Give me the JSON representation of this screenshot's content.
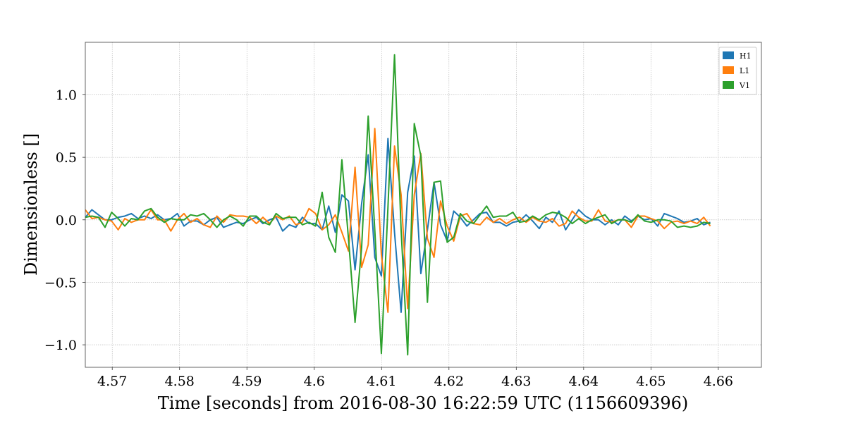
{
  "chart_data": {
    "type": "line",
    "xlabel": "Time [seconds] from 2016-08-30 16:22:59 UTC (1156609396)",
    "ylabel": "Dimensionless []",
    "xlim": [
      4.566,
      4.6664
    ],
    "ylim": [
      -1.18,
      1.42
    ],
    "grid": true,
    "legend_position": "top-right",
    "x_ticks": [
      4.57,
      4.58,
      4.59,
      4.6,
      4.61,
      4.62,
      4.63,
      4.64,
      4.65,
      4.66
    ],
    "x_tick_labels": [
      "4.57",
      "4.58",
      "4.59",
      "4.6",
      "4.61",
      "4.62",
      "4.63",
      "4.64",
      "4.65",
      "4.66"
    ],
    "y_ticks": [
      1.0,
      0.5,
      0.0,
      -0.5,
      -1.0
    ],
    "y_tick_labels": [
      "1.0",
      "0.5",
      "0.0",
      "−0.5",
      "−1.0"
    ],
    "x_start": 4.566,
    "x_step": 0.000977,
    "series": [
      {
        "name": "H1",
        "color": "#1f77b4",
        "values": [
          0.02,
          0.08,
          0.04,
          0.0,
          0.0,
          0.02,
          0.03,
          0.05,
          0.01,
          0.03,
          0.01,
          0.04,
          0.0,
          0.01,
          0.05,
          -0.05,
          -0.01,
          -0.01,
          -0.04,
          0.0,
          0.02,
          -0.06,
          -0.04,
          -0.02,
          -0.03,
          0.0,
          0.02,
          -0.03,
          0.0,
          0.02,
          -0.09,
          -0.04,
          -0.06,
          0.02,
          -0.03,
          -0.03,
          -0.08,
          0.11,
          -0.1,
          0.2,
          0.15,
          -0.4,
          0.13,
          0.52,
          -0.3,
          -0.45,
          0.65,
          -0.1,
          -0.74,
          0.22,
          0.51,
          -0.43,
          -0.08,
          0.3,
          -0.04,
          -0.17,
          0.07,
          0.02,
          -0.05,
          0.0,
          0.05,
          0.06,
          -0.02,
          -0.02,
          -0.05,
          -0.02,
          -0.01,
          0.04,
          -0.01,
          -0.07,
          0.02,
          -0.02,
          0.07,
          -0.08,
          0.0,
          0.08,
          0.03,
          0.0,
          0.0,
          -0.04,
          0.0,
          -0.04,
          0.03,
          -0.01,
          0.03,
          0.0,
          0.01,
          -0.05,
          0.05,
          0.03,
          0.01,
          -0.02,
          -0.01,
          0.01,
          -0.04,
          -0.02
        ]
      },
      {
        "name": "L1",
        "color": "#ff7f0e",
        "values": [
          0.08,
          0.01,
          0.02,
          0.0,
          -0.01,
          -0.08,
          0.01,
          -0.02,
          0.0,
          0.0,
          0.08,
          0.0,
          0.0,
          -0.09,
          0.0,
          0.05,
          -0.02,
          0.01,
          -0.04,
          -0.06,
          0.03,
          -0.02,
          0.04,
          0.03,
          0.03,
          0.02,
          -0.03,
          0.02,
          -0.03,
          0.03,
          0.0,
          0.03,
          -0.04,
          -0.02,
          0.09,
          0.05,
          -0.08,
          -0.04,
          0.04,
          -0.1,
          -0.25,
          0.42,
          -0.38,
          -0.2,
          0.73,
          -0.28,
          -0.74,
          0.59,
          0.2,
          -0.71,
          0.2,
          0.53,
          -0.15,
          -0.3,
          0.15,
          -0.05,
          -0.17,
          0.03,
          0.05,
          -0.03,
          -0.04,
          0.02,
          -0.02,
          0.01,
          -0.03,
          0.0,
          0.02,
          -0.02,
          0.02,
          -0.01,
          -0.02,
          0.01,
          -0.05,
          -0.03,
          0.07,
          0.02,
          -0.01,
          -0.01,
          0.08,
          -0.01,
          -0.02,
          0.0,
          0.0,
          -0.06,
          0.03,
          0.03,
          0.01,
          -0.01,
          -0.07,
          -0.02,
          -0.01,
          -0.03,
          -0.01,
          -0.03,
          0.02,
          -0.05
        ]
      },
      {
        "name": "V1",
        "color": "#2ca02c",
        "values": [
          0.02,
          0.03,
          0.02,
          -0.06,
          0.06,
          0.01,
          -0.05,
          0.01,
          0.0,
          0.07,
          0.09,
          0.02,
          -0.02,
          0.01,
          0.0,
          0.0,
          0.04,
          0.03,
          0.05,
          0.0,
          -0.06,
          0.0,
          0.03,
          0.0,
          -0.05,
          0.03,
          0.03,
          -0.02,
          -0.04,
          0.05,
          0.01,
          0.02,
          0.02,
          -0.04,
          -0.02,
          -0.05,
          0.22,
          -0.14,
          -0.26,
          0.48,
          -0.15,
          -0.82,
          -0.22,
          0.83,
          -0.08,
          -1.07,
          0.1,
          1.32,
          -0.08,
          -1.08,
          0.77,
          0.51,
          -0.66,
          0.3,
          0.31,
          -0.18,
          -0.14,
          0.05,
          -0.01,
          -0.03,
          0.04,
          0.11,
          0.02,
          0.03,
          0.03,
          0.06,
          -0.02,
          -0.01,
          0.03,
          0.0,
          0.04,
          0.06,
          0.05,
          0.02,
          -0.03,
          0.01,
          -0.03,
          0.0,
          0.02,
          0.04,
          -0.03,
          0.0,
          0.0,
          -0.02,
          0.04,
          -0.01,
          -0.02,
          0.0,
          0.0,
          -0.01,
          -0.06,
          -0.05,
          -0.06,
          -0.05,
          -0.02,
          -0.03
        ]
      }
    ]
  }
}
